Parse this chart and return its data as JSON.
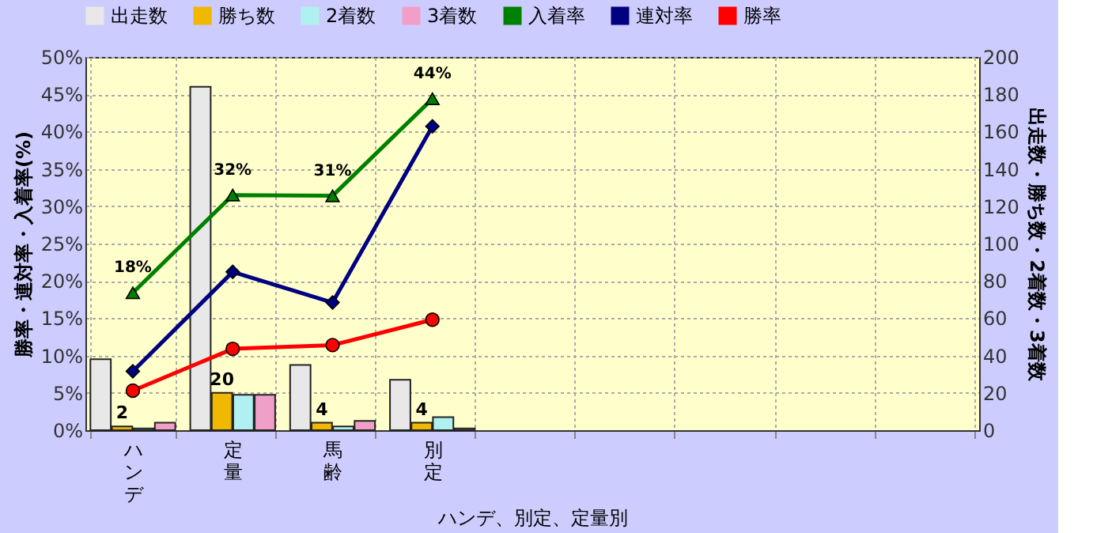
{
  "chart_data": {
    "type": "bar",
    "xlabel": "ハンデ、別定、定量別",
    "ylabel": "勝率・連対率・入着率(%)",
    "y2label": "出走数・勝ち数・2着数・3着数",
    "categories": [
      "ハンデ",
      "定量",
      "馬齢",
      "別定",
      null,
      null,
      null,
      null,
      null
    ],
    "series": [
      {
        "name": "出走数",
        "color": "#e8e8e8",
        "axis": "y2",
        "values": [
          38,
          184,
          35,
          27,
          null,
          null,
          null,
          null,
          null
        ]
      },
      {
        "name": "勝ち数",
        "color": "#f0b800",
        "axis": "y2",
        "values": [
          2,
          20,
          4,
          4,
          null,
          null,
          null,
          null,
          null
        ],
        "value_labels": [
          "2",
          "20",
          "4",
          "4",
          null,
          null,
          null,
          null,
          null
        ]
      },
      {
        "name": "2着数",
        "color": "#b0f0f0",
        "axis": "y2",
        "values": [
          1,
          19,
          2,
          7,
          null,
          null,
          null,
          null,
          null
        ]
      },
      {
        "name": "3着数",
        "color": "#f0a0c8",
        "axis": "y2",
        "values": [
          4,
          19,
          5,
          1,
          null,
          null,
          null,
          null,
          null
        ]
      },
      {
        "name": "入着率",
        "type": "line",
        "color": "#008000",
        "marker": "triangle",
        "values": [
          18.4,
          31.5,
          31.4,
          44.4,
          null,
          null,
          null,
          null,
          null
        ],
        "value_labels": [
          "18%",
          "32%",
          "31%",
          "44%",
          null,
          null,
          null,
          null,
          null
        ]
      },
      {
        "name": "連対率",
        "type": "line",
        "color": "#000080",
        "marker": "diamond",
        "values": [
          7.9,
          21.2,
          17.1,
          40.7,
          null,
          null,
          null,
          null,
          null
        ]
      },
      {
        "name": "勝率",
        "type": "line",
        "color": "#ff0000",
        "marker": "circle",
        "values": [
          5.3,
          10.9,
          11.4,
          14.8,
          null,
          null,
          null,
          null,
          null
        ]
      }
    ],
    "ylim": [
      0,
      50
    ],
    "yticks": [
      {
        "value": 0,
        "label": "0%"
      },
      {
        "value": 5,
        "label": "5%"
      },
      {
        "value": 10,
        "label": "10%"
      },
      {
        "value": 15,
        "label": "15%"
      },
      {
        "value": 20,
        "label": "20%"
      },
      {
        "value": 25,
        "label": "25%"
      },
      {
        "value": 30,
        "label": "30%"
      },
      {
        "value": 35,
        "label": "35%"
      },
      {
        "value": 40,
        "label": "40%"
      },
      {
        "value": 45,
        "label": "45%"
      },
      {
        "value": 50,
        "label": "50%"
      }
    ],
    "y2lim": [
      0,
      200
    ],
    "y2ticks": [
      0,
      20,
      40,
      60,
      80,
      100,
      120,
      140,
      160,
      180,
      200
    ],
    "grid": true,
    "legend": "top"
  }
}
